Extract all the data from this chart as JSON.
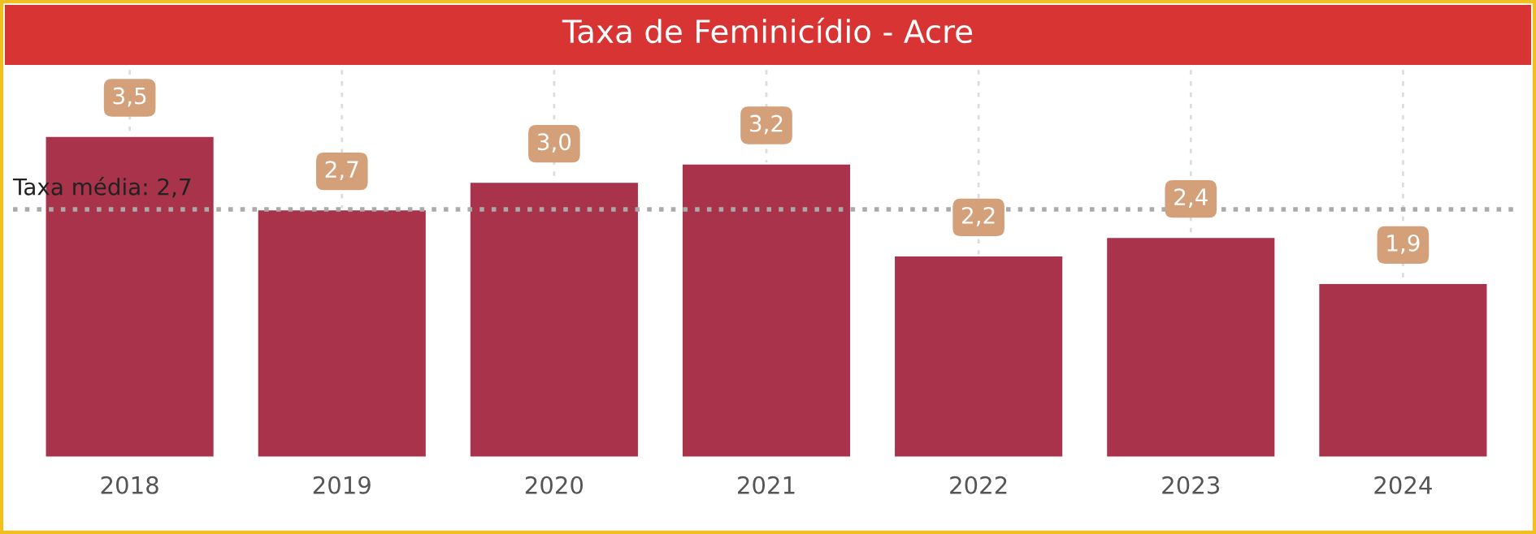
{
  "chart_data": {
    "type": "bar",
    "title": "Taxa de Feminicídio - Acre",
    "categories": [
      "2018",
      "2019",
      "2020",
      "2021",
      "2022",
      "2023",
      "2024"
    ],
    "values": [
      3.5,
      2.7,
      3.0,
      3.2,
      2.2,
      2.4,
      1.9
    ],
    "value_labels": [
      "3,5",
      "2,7",
      "3,0",
      "3,2",
      "2,2",
      "2,4",
      "1,9"
    ],
    "color": "#a8334a",
    "ref_lines": [
      {
        "axis": "y",
        "value": 2.7,
        "label": "Taxa média: 2,7",
        "color": "#aaaaaa",
        "line_style": "dotted"
      }
    ],
    "grid": "x"
  }
}
